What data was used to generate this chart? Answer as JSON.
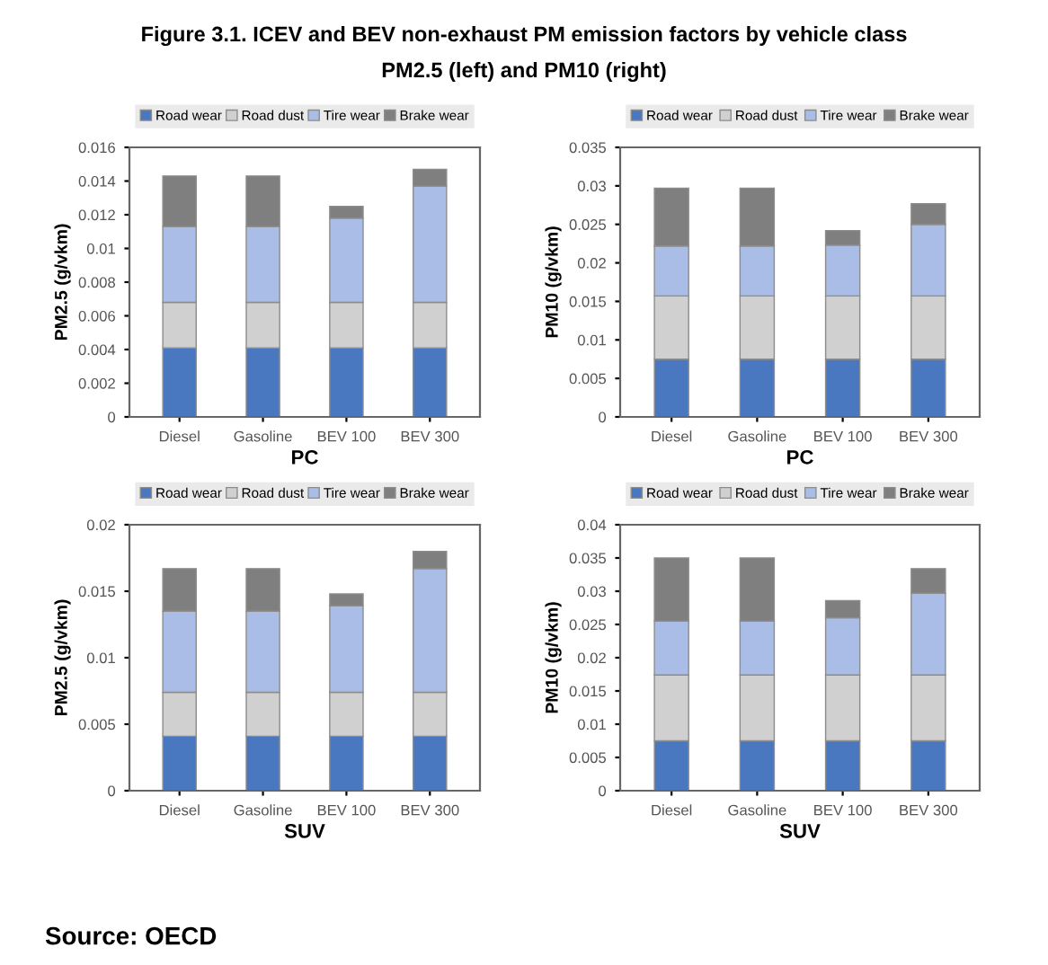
{
  "chart_data": [
    {
      "type": "bar",
      "stacked": true,
      "title": "Figure 3.1. ICEV and BEV non-exhaust PM emission factors by vehicle class",
      "subtitle": "PM2.5 (left) and PM10 (right)",
      "xlabel": "PC",
      "ylabel": "PM2.5 (g/vkm)",
      "categories": [
        "Diesel",
        "Gasoline",
        "BEV 100",
        "BEV 300"
      ],
      "series": [
        {
          "name": "Road wear",
          "color": "#4a78c0",
          "values": [
            0.0041,
            0.0041,
            0.0041,
            0.0041
          ]
        },
        {
          "name": "Road dust",
          "color": "#d0d0d0",
          "values": [
            0.0027,
            0.0027,
            0.0027,
            0.0027
          ]
        },
        {
          "name": "Tire wear",
          "color": "#a9bde6",
          "values": [
            0.0045,
            0.0045,
            0.005,
            0.0069
          ]
        },
        {
          "name": "Brake wear",
          "color": "#7f7f7f",
          "values": [
            0.003,
            0.003,
            0.0007,
            0.001
          ]
        }
      ],
      "ylim": [
        0,
        0.016
      ],
      "yticks": [
        0,
        0.002,
        0.004,
        0.006,
        0.008,
        0.01,
        0.012,
        0.014,
        0.016
      ],
      "legend": "top",
      "grid": false
    },
    {
      "type": "bar",
      "stacked": true,
      "xlabel": "PC",
      "ylabel": "PM10 (g/vkm)",
      "categories": [
        "Diesel",
        "Gasoline",
        "BEV 100",
        "BEV 300"
      ],
      "series": [
        {
          "name": "Road wear",
          "color": "#4a78c0",
          "values": [
            0.0075,
            0.0075,
            0.0075,
            0.0075
          ]
        },
        {
          "name": "Road dust",
          "color": "#d0d0d0",
          "values": [
            0.0082,
            0.0082,
            0.0082,
            0.0082
          ]
        },
        {
          "name": "Tire wear",
          "color": "#a9bde6",
          "values": [
            0.0065,
            0.0065,
            0.0066,
            0.0093
          ]
        },
        {
          "name": "Brake wear",
          "color": "#7f7f7f",
          "values": [
            0.0075,
            0.0075,
            0.0019,
            0.0027
          ]
        }
      ],
      "ylim": [
        0,
        0.035
      ],
      "yticks": [
        0,
        0.005,
        0.01,
        0.015,
        0.02,
        0.025,
        0.03,
        0.035
      ],
      "legend": "top",
      "grid": false
    },
    {
      "type": "bar",
      "stacked": true,
      "xlabel": "SUV",
      "ylabel": "PM2.5 (g/vkm)",
      "categories": [
        "Diesel",
        "Gasoline",
        "BEV 100",
        "BEV 300"
      ],
      "series": [
        {
          "name": "Road wear",
          "color": "#4a78c0",
          "values": [
            0.0041,
            0.0041,
            0.0041,
            0.0041
          ]
        },
        {
          "name": "Road dust",
          "color": "#d0d0d0",
          "values": [
            0.0033,
            0.0033,
            0.0033,
            0.0033
          ]
        },
        {
          "name": "Tire wear",
          "color": "#a9bde6",
          "values": [
            0.0061,
            0.0061,
            0.0065,
            0.0093
          ]
        },
        {
          "name": "Brake wear",
          "color": "#7f7f7f",
          "values": [
            0.0032,
            0.0032,
            0.0009,
            0.0013
          ]
        }
      ],
      "ylim": [
        0,
        0.02
      ],
      "yticks": [
        0,
        0.005,
        0.01,
        0.015,
        0.02
      ],
      "legend": "top",
      "grid": false
    },
    {
      "type": "bar",
      "stacked": true,
      "xlabel": "SUV",
      "ylabel": "PM10 (g/vkm)",
      "categories": [
        "Diesel",
        "Gasoline",
        "BEV 100",
        "BEV 300"
      ],
      "series": [
        {
          "name": "Road wear",
          "color": "#4a78c0",
          "values": [
            0.0075,
            0.0075,
            0.0075,
            0.0075
          ]
        },
        {
          "name": "Road dust",
          "color": "#d0d0d0",
          "values": [
            0.0099,
            0.0099,
            0.0099,
            0.0099
          ]
        },
        {
          "name": "Tire wear",
          "color": "#a9bde6",
          "values": [
            0.0081,
            0.0081,
            0.0086,
            0.0123
          ]
        },
        {
          "name": "Brake wear",
          "color": "#7f7f7f",
          "values": [
            0.0095,
            0.0095,
            0.0026,
            0.0037
          ]
        }
      ],
      "ylim": [
        0,
        0.04
      ],
      "yticks": [
        0,
        0.005,
        0.01,
        0.015,
        0.02,
        0.025,
        0.03,
        0.035,
        0.04
      ],
      "legend": "top",
      "grid": false,
      "annotations": [
        "Source: OECD"
      ]
    }
  ]
}
